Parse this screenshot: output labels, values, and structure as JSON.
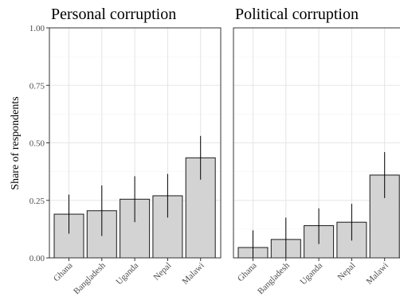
{
  "chart_data": {
    "type": "bar",
    "ylabel": "Share of respondents",
    "ylim": [
      0,
      1
    ],
    "yticks": [
      "0.00",
      "0.25",
      "0.50",
      "0.75",
      "1.00"
    ],
    "grid": true,
    "error_bars": true,
    "panels": [
      {
        "title": "Personal corruption",
        "categories": [
          "Ghana",
          "Bangladesh",
          "Uganda",
          "Nepal",
          "Malawi"
        ],
        "values": [
          0.19,
          0.205,
          0.255,
          0.27,
          0.435
        ],
        "error_low": [
          0.105,
          0.095,
          0.155,
          0.175,
          0.34
        ],
        "error_high": [
          0.275,
          0.315,
          0.355,
          0.365,
          0.53
        ]
      },
      {
        "title": "Political corruption",
        "categories": [
          "Ghana",
          "Bangladesh",
          "Uganda",
          "Nepal",
          "Malawi"
        ],
        "values": [
          0.045,
          0.08,
          0.14,
          0.155,
          0.36
        ],
        "error_low": [
          0.0,
          0.0,
          0.06,
          0.075,
          0.26
        ],
        "error_high": [
          0.12,
          0.175,
          0.215,
          0.235,
          0.46
        ]
      }
    ],
    "colors": {
      "bar_fill": "#d3d3d3",
      "bar_stroke": "#1a1a1a",
      "grid_major": "#e6e6e6",
      "grid_minor": "#f2f2f2",
      "panel_border": "#333333",
      "error_bar": "#000000"
    }
  }
}
